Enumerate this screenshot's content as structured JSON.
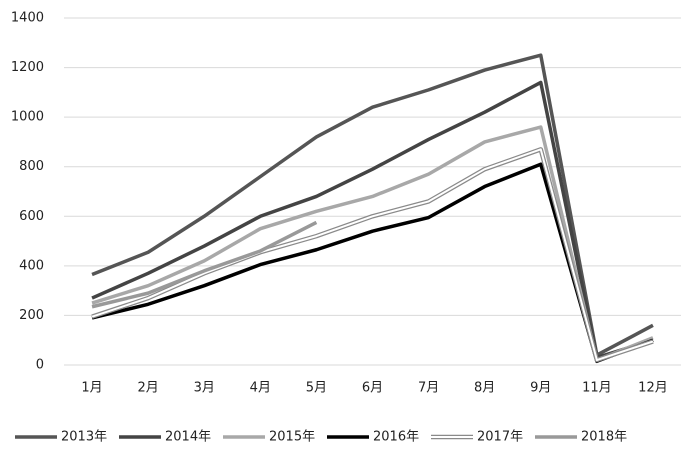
{
  "chart_data": {
    "type": "line",
    "categories": [
      "1月",
      "2月",
      "3月",
      "4月",
      "5月",
      "6月",
      "7月",
      "8月",
      "9月",
      "11月",
      "12月"
    ],
    "series": [
      {
        "name": "2013年",
        "color": "#555555",
        "values": [
          365,
          455,
          600,
          760,
          920,
          1040,
          1110,
          1190,
          1250,
          40,
          160
        ]
      },
      {
        "name": "2014年",
        "color": "#444444",
        "values": [
          270,
          370,
          480,
          600,
          680,
          790,
          910,
          1020,
          1140,
          30,
          100
        ]
      },
      {
        "name": "2015年",
        "color": "#a8a8a8",
        "values": [
          250,
          320,
          420,
          550,
          620,
          680,
          770,
          900,
          960,
          20,
          110
        ]
      },
      {
        "name": "2016年",
        "color": "#000000",
        "values": [
          190,
          245,
          320,
          405,
          465,
          540,
          595,
          720,
          810,
          15,
          100
        ]
      },
      {
        "name": "2017年",
        "color": "#ffffff",
        "outline": "#8a8a8a",
        "values": [
          195,
          270,
          370,
          455,
          520,
          600,
          660,
          790,
          870,
          20,
          95
        ]
      },
      {
        "name": "2018年",
        "color": "#999999",
        "values": [
          235,
          290,
          380,
          460,
          575,
          null,
          null,
          null,
          null,
          null,
          null
        ]
      }
    ],
    "ylim": [
      0,
      1400
    ],
    "yticks": [
      0,
      200,
      400,
      600,
      800,
      1000,
      1200,
      1400
    ],
    "grid": true,
    "legend": "bottom"
  }
}
